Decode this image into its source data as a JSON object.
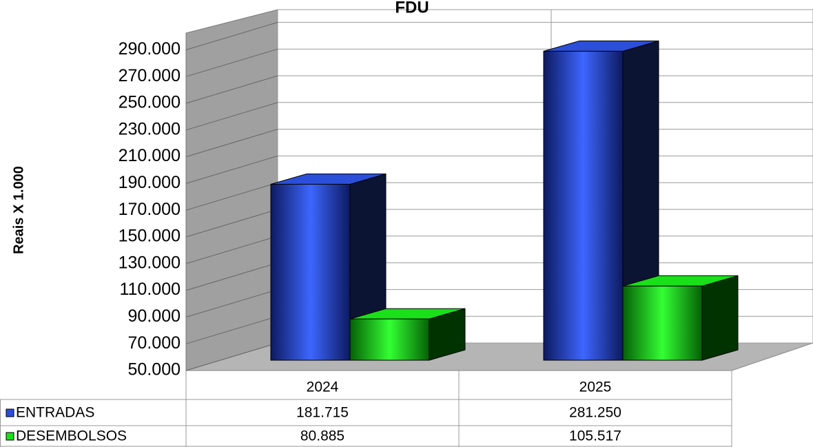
{
  "chart_data": {
    "type": "bar3d",
    "title": "FDU",
    "y_label": "Reais X 1.000",
    "categories": [
      "2024",
      "2025"
    ],
    "series": [
      {
        "name": "ENTRADAS",
        "color": "#2b4fd8",
        "values": [
          181715,
          281250
        ],
        "value_labels": [
          "181.715",
          "281.250"
        ]
      },
      {
        "name": "DESEMBOLSOS",
        "color": "#19e019",
        "values": [
          80885,
          105517
        ],
        "value_labels": [
          "80.885",
          "105.517"
        ]
      }
    ],
    "ylim": [
      50000,
      300000
    ],
    "yticks": [
      {
        "value": 50000,
        "label": "50.000"
      },
      {
        "value": 70000,
        "label": "70.000"
      },
      {
        "value": 90000,
        "label": "90.000"
      },
      {
        "value": 110000,
        "label": "110.000"
      },
      {
        "value": 130000,
        "label": "130.000"
      },
      {
        "value": 150000,
        "label": "150.000"
      },
      {
        "value": 170000,
        "label": "170.000"
      },
      {
        "value": 190000,
        "label": "190.000"
      },
      {
        "value": 210000,
        "label": "210.000"
      },
      {
        "value": 230000,
        "label": "230.000"
      },
      {
        "value": 250000,
        "label": "250.000"
      },
      {
        "value": 270000,
        "label": "270.000"
      },
      {
        "value": 290000,
        "label": "290.000"
      }
    ],
    "grid": true
  }
}
